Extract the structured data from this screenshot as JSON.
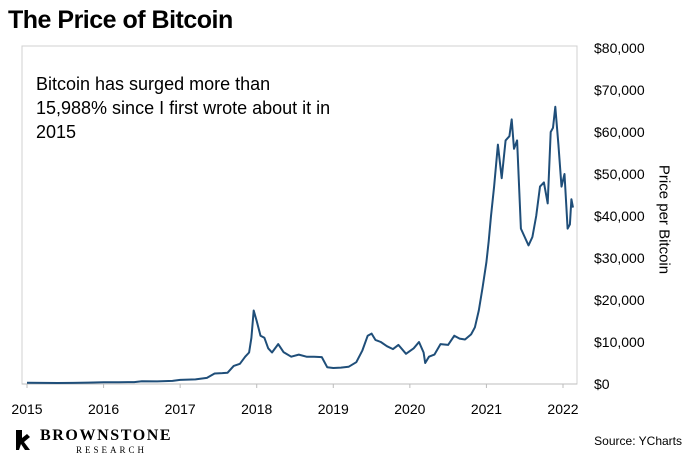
{
  "title": "The Price of Bitcoin",
  "annotation": "Bitcoin has surged more than 15,988% since I first wrote about it in 2015",
  "source": "Source: YCharts",
  "logo": {
    "name": "BROWNSTONE",
    "sub": "RESEARCH"
  },
  "colors": {
    "line": "#1f4e79",
    "frame": "#d0d0d0",
    "text": "#000000"
  },
  "chart_data": {
    "type": "line",
    "title": "The Price of Bitcoin",
    "xlabel": "",
    "ylabel": "Price per Bitcoin",
    "xlim": [
      2015.0,
      2022.15
    ],
    "ylim": [
      0,
      80000
    ],
    "x_ticks": [
      2015,
      2016,
      2017,
      2018,
      2019,
      2020,
      2021,
      2022
    ],
    "x_tick_labels": [
      "2015",
      "2016",
      "2017",
      "2018",
      "2019",
      "2020",
      "2021",
      "2022"
    ],
    "y_ticks": [
      0,
      10000,
      20000,
      30000,
      40000,
      50000,
      60000,
      70000,
      80000
    ],
    "y_tick_labels": [
      "$0",
      "$10,000",
      "$20,000",
      "$30,000",
      "$40,000",
      "$50,000",
      "$60,000",
      "$70,000",
      "$80,000"
    ],
    "y_axis_side": "right",
    "grid": false,
    "series": [
      {
        "x": [
          2015.0,
          2015.2,
          2015.4,
          2015.6,
          2015.8,
          2016.0,
          2016.2,
          2016.4,
          2016.5,
          2016.7,
          2016.9,
          2017.0,
          2017.2,
          2017.35,
          2017.45,
          2017.55,
          2017.62,
          2017.7,
          2017.78,
          2017.85,
          2017.9,
          2017.93,
          2017.96,
          2018.0,
          2018.05,
          2018.1,
          2018.15,
          2018.2,
          2018.28,
          2018.35,
          2018.45,
          2018.55,
          2018.65,
          2018.75,
          2018.85,
          2018.92,
          2019.0,
          2019.1,
          2019.2,
          2019.3,
          2019.38,
          2019.45,
          2019.5,
          2019.55,
          2019.62,
          2019.7,
          2019.78,
          2019.85,
          2019.95,
          2020.05,
          2020.12,
          2020.18,
          2020.2,
          2020.25,
          2020.32,
          2020.4,
          2020.5,
          2020.58,
          2020.65,
          2020.72,
          2020.8,
          2020.85,
          2020.9,
          2020.95,
          2021.0,
          2021.03,
          2021.06,
          2021.1,
          2021.15,
          2021.2,
          2021.25,
          2021.3,
          2021.33,
          2021.36,
          2021.4,
          2021.45,
          2021.5,
          2021.55,
          2021.6,
          2021.65,
          2021.7,
          2021.75,
          2021.8,
          2021.84,
          2021.87,
          2021.9,
          2021.94,
          2021.98,
          2022.02,
          2022.06,
          2022.09,
          2022.11,
          2022.13
        ],
        "values": [
          300,
          250,
          230,
          260,
          330,
          430,
          420,
          450,
          670,
          610,
          740,
          970,
          1100,
          1450,
          2500,
          2600,
          2700,
          4300,
          4800,
          6500,
          7500,
          11000,
          17500,
          15000,
          11500,
          11000,
          8500,
          7500,
          9500,
          7600,
          6500,
          7000,
          6500,
          6500,
          6400,
          4000,
          3800,
          3900,
          4100,
          5200,
          8000,
          11500,
          12000,
          10500,
          10000,
          9000,
          8300,
          9300,
          7200,
          8500,
          10000,
          7500,
          5000,
          6500,
          7000,
          9500,
          9300,
          11500,
          10800,
          10600,
          11800,
          13500,
          17500,
          23000,
          29000,
          34000,
          40000,
          47000,
          57000,
          49000,
          58000,
          59000,
          63000,
          56000,
          58000,
          37000,
          35000,
          33000,
          35000,
          40000,
          47000,
          48000,
          43000,
          60000,
          61000,
          66000,
          57000,
          47000,
          50000,
          37000,
          38000,
          44000,
          42000
        ]
      }
    ]
  }
}
